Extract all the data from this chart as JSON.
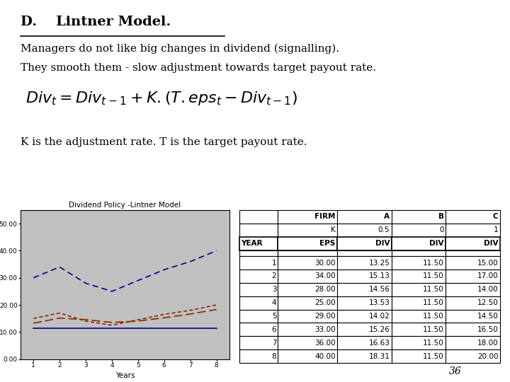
{
  "title": "D.    Lintner Model.",
  "line1": "Managers do not like big changes in dividend (signalling).",
  "line2": "They smooth them - slow adjustment towards target payout rate.",
  "caption": "K is the adjustment rate. T is the target payout rate.",
  "page_number": "36",
  "chart_title": "Dividend Policy -Lintner Model",
  "years": [
    1,
    2,
    3,
    4,
    5,
    6,
    7,
    8
  ],
  "eps": [
    30.0,
    34.0,
    28.0,
    25.0,
    29.0,
    33.0,
    36.0,
    40.0
  ],
  "div_A": [
    13.25,
    15.13,
    14.56,
    13.53,
    14.02,
    15.26,
    16.63,
    18.31
  ],
  "div_B": [
    11.5,
    11.5,
    11.5,
    11.5,
    11.5,
    11.5,
    11.5,
    11.5
  ],
  "div_C": [
    15.0,
    17.0,
    14.0,
    12.5,
    14.5,
    16.5,
    18.0,
    20.0
  ],
  "bg_color": "#ffffff",
  "chart_bg": "#c0c0c0",
  "fig_width": 7.2,
  "fig_height": 5.4,
  "fig_dpi": 100
}
